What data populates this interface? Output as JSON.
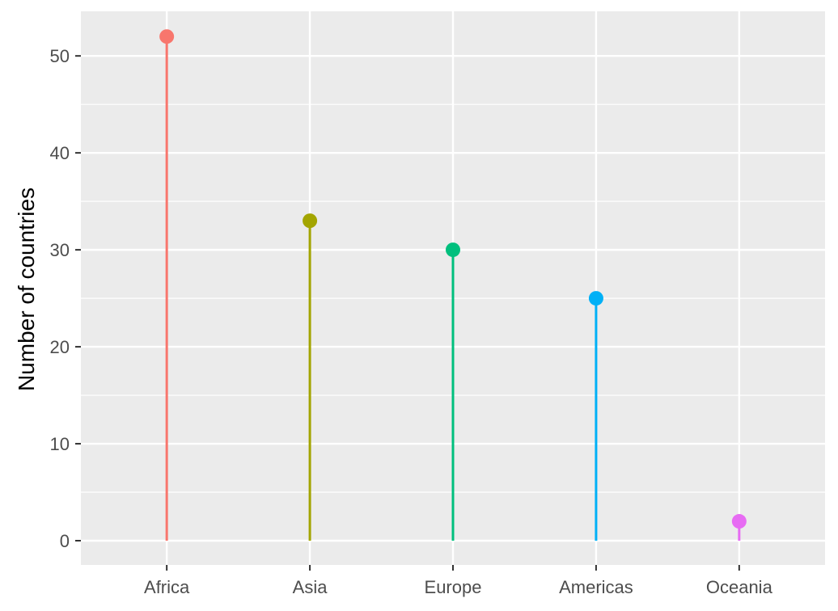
{
  "chart_data": {
    "type": "lollipop",
    "categories": [
      "Africa",
      "Asia",
      "Europe",
      "Americas",
      "Oceania"
    ],
    "values": [
      52,
      33,
      30,
      25,
      2
    ],
    "colors": [
      "#F8766D",
      "#A3A500",
      "#00BF7D",
      "#00B0F6",
      "#E76BF3"
    ],
    "title": "",
    "xlabel": "",
    "ylabel": "Number of countries",
    "ylim": [
      -2.5,
      54.6
    ],
    "yticks": [
      0,
      10,
      20,
      30,
      40,
      50
    ],
    "grid": true,
    "legend": "none",
    "panel_background": "#EBEBEB",
    "grid_color": "#FFFFFF"
  }
}
